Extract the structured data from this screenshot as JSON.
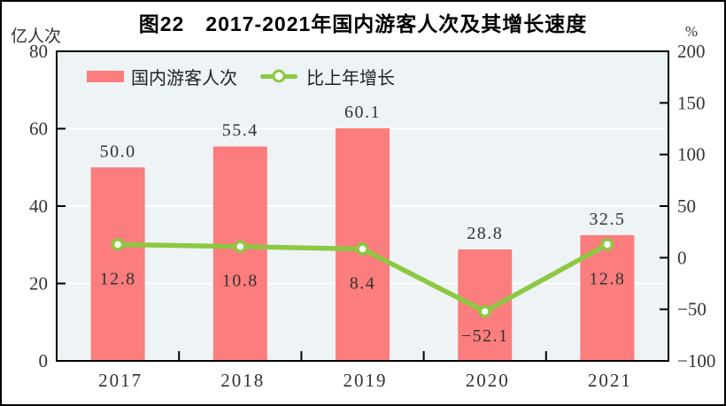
{
  "title": "图22　2017-2021年国内游客人次及其增长速度",
  "left_axis_unit": "亿人次",
  "right_axis_unit": "%",
  "legend": {
    "bar_label": "国内游客人次",
    "line_label": "比上年增长"
  },
  "colors": {
    "bar": "#FC7D7D",
    "line": "#8CC841",
    "marker_fill": "#FFFFFF",
    "plot_background": "#EEF3F6",
    "gridline": "#FFFFFF",
    "frame": "#000000",
    "label_text": "#333333"
  },
  "chart_data": {
    "type": "bar",
    "categories": [
      "2017",
      "2018",
      "2019",
      "2020",
      "2021"
    ],
    "series": [
      {
        "name": "国内游客人次",
        "type": "bar",
        "axis": "left",
        "values": [
          50.0,
          55.4,
          60.1,
          28.8,
          32.5
        ],
        "labels": [
          "50.0",
          "55.4",
          "60.1",
          "28.8",
          "32.5"
        ],
        "color": "#FC7D7D"
      },
      {
        "name": "比上年增长",
        "type": "line",
        "axis": "right",
        "values": [
          12.8,
          10.8,
          8.4,
          -52.1,
          12.8
        ],
        "labels": [
          "12.8",
          "10.8",
          "8.4",
          "−52.1",
          "12.8"
        ],
        "color": "#8CC841"
      }
    ],
    "left_axis": {
      "label": "亿人次",
      "min": 0,
      "max": 80,
      "ticks": [
        0,
        20,
        40,
        60,
        80
      ],
      "tick_labels": [
        "0",
        "20",
        "40",
        "60",
        "80"
      ]
    },
    "right_axis": {
      "label": "%",
      "min": -100,
      "max": 200,
      "ticks": [
        -100,
        -50,
        0,
        50,
        100,
        150,
        200
      ],
      "tick_labels": [
        "−100",
        "−50",
        "0",
        "50",
        "100",
        "150",
        "200"
      ]
    },
    "grid": "horizontal white lines at left-axis ticks 20/40/60",
    "legend_position": "top-inside"
  }
}
